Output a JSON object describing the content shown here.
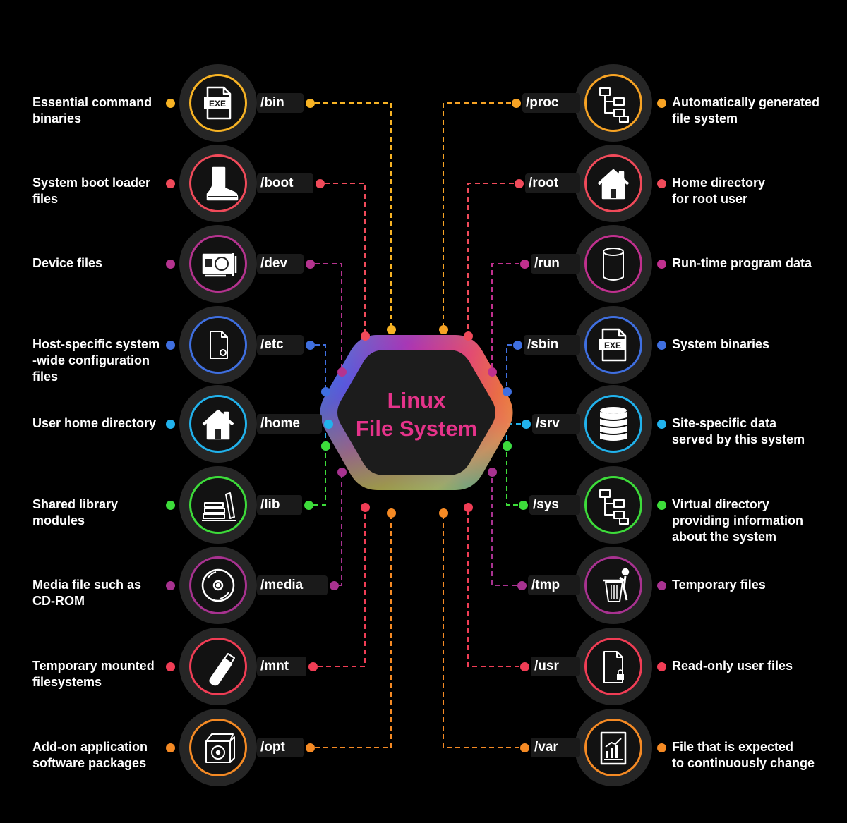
{
  "center": {
    "line1": "Linux",
    "line2": "File System"
  },
  "left": [
    {
      "path": "/bin",
      "description": [
        "Essential command",
        "binaries"
      ],
      "icon": "exe-file-icon",
      "color": "#f7b324"
    },
    {
      "path": "/boot",
      "description": [
        "System boot loader",
        "files"
      ],
      "icon": "boot-icon",
      "color": "#f04a5a"
    },
    {
      "path": "/dev",
      "description": [
        "Device files"
      ],
      "icon": "graphics-card-icon",
      "color": "#b5338f"
    },
    {
      "path": "/etc",
      "description": [
        "Host-specific system",
        "-wide configuration",
        "files"
      ],
      "icon": "config-file-icon",
      "color": "#3f6fe0"
    },
    {
      "path": "/home",
      "description": [
        "User home directory"
      ],
      "icon": "home-icon",
      "color": "#21b2ec"
    },
    {
      "path": "/lib",
      "description": [
        "Shared library",
        "modules"
      ],
      "icon": "books-icon",
      "color": "#3ddc3a"
    },
    {
      "path": "/media",
      "description": [
        "Media file such as",
        "CD-ROM"
      ],
      "icon": "cd-rom-icon",
      "color": "#a83290"
    },
    {
      "path": "/mnt",
      "description": [
        "Temporary mounted",
        "filesystems"
      ],
      "icon": "usb-drive-icon",
      "color": "#f03d55"
    },
    {
      "path": "/opt",
      "description": [
        "Add-on application",
        "software packages"
      ],
      "icon": "software-box-icon",
      "color": "#f58a24"
    }
  ],
  "right": [
    {
      "path": "/proc",
      "description": [
        "Automatically generated",
        "file system"
      ],
      "icon": "file-tree-icon",
      "color": "#f7a324"
    },
    {
      "path": "/root",
      "description": [
        "Home directory",
        "for root user"
      ],
      "icon": "home-icon",
      "color": "#f04a5a"
    },
    {
      "path": "/run",
      "description": [
        "Run-time program data"
      ],
      "icon": "cylinder-icon",
      "color": "#c0308e"
    },
    {
      "path": "/sbin",
      "description": [
        "System binaries"
      ],
      "icon": "exe-file-icon",
      "color": "#3f6fe0"
    },
    {
      "path": "/srv",
      "description": [
        "Site-specific data",
        "served by this system"
      ],
      "icon": "database-icon",
      "color": "#21b2ec"
    },
    {
      "path": "/sys",
      "description": [
        "Virtual directory",
        "providing information",
        "about the system"
      ],
      "icon": "file-tree-icon",
      "color": "#3ddc3a"
    },
    {
      "path": "/tmp",
      "description": [
        "Temporary files"
      ],
      "icon": "trash-icon",
      "color": "#a83290"
    },
    {
      "path": "/usr",
      "description": [
        "Read-only user files"
      ],
      "icon": "locked-file-icon",
      "color": "#f03d55"
    },
    {
      "path": "/var",
      "description": [
        "File that is expected",
        "to continuously change"
      ],
      "icon": "chart-report-icon",
      "color": "#f58a24"
    }
  ]
}
